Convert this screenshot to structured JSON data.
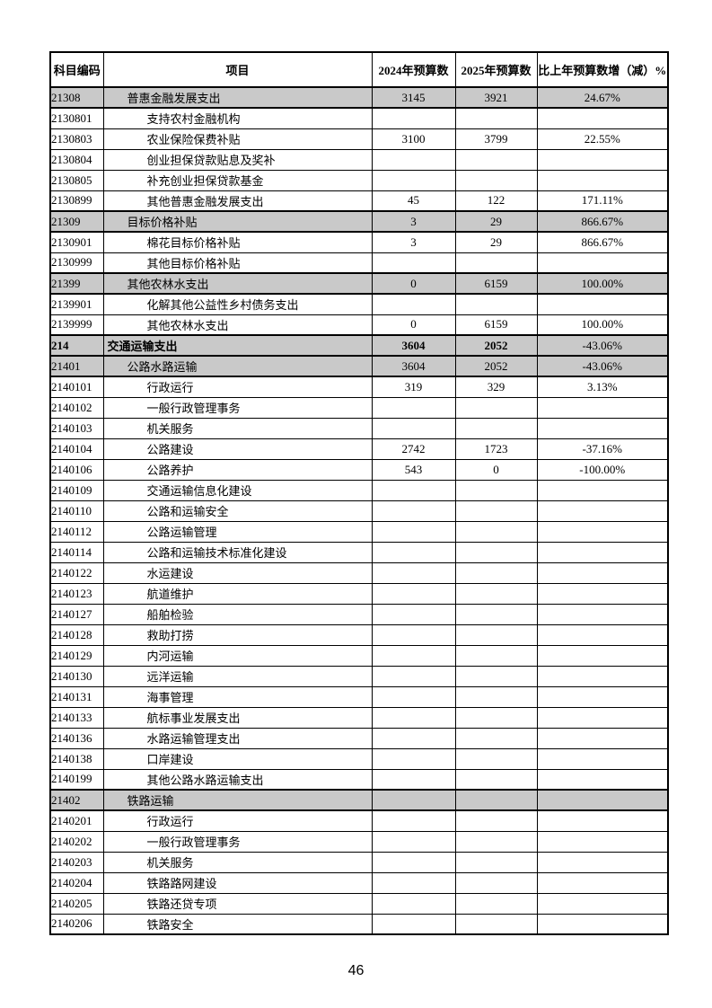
{
  "page": {
    "number": "46"
  },
  "table": {
    "columns": [
      "科目编码",
      "项目",
      "2024年预算数",
      "2025年预算数",
      "比上年预算数增（减）%"
    ],
    "rows": [
      {
        "code": "21308",
        "item": "普惠金融发展支出",
        "level": 2,
        "shaded": true,
        "bold": false,
        "v2024": "3145",
        "v2025": "3921",
        "pct": "24.67%"
      },
      {
        "code": "2130801",
        "item": "支持农村金融机构",
        "level": 3,
        "shaded": false,
        "bold": false,
        "v2024": "",
        "v2025": "",
        "pct": ""
      },
      {
        "code": "2130803",
        "item": "农业保险保费补贴",
        "level": 3,
        "shaded": false,
        "bold": false,
        "v2024": "3100",
        "v2025": "3799",
        "pct": "22.55%"
      },
      {
        "code": "2130804",
        "item": "创业担保贷款贴息及奖补",
        "level": 3,
        "shaded": false,
        "bold": false,
        "v2024": "",
        "v2025": "",
        "pct": ""
      },
      {
        "code": "2130805",
        "item": "补充创业担保贷款基金",
        "level": 3,
        "shaded": false,
        "bold": false,
        "v2024": "",
        "v2025": "",
        "pct": ""
      },
      {
        "code": "2130899",
        "item": "其他普惠金融发展支出",
        "level": 3,
        "shaded": false,
        "bold": false,
        "v2024": "45",
        "v2025": "122",
        "pct": "171.11%"
      },
      {
        "code": "21309",
        "item": "目标价格补贴",
        "level": 2,
        "shaded": true,
        "bold": false,
        "v2024": "3",
        "v2025": "29",
        "pct": "866.67%"
      },
      {
        "code": "2130901",
        "item": "棉花目标价格补贴",
        "level": 3,
        "shaded": false,
        "bold": false,
        "v2024": "3",
        "v2025": "29",
        "pct": "866.67%"
      },
      {
        "code": "2130999",
        "item": "其他目标价格补贴",
        "level": 3,
        "shaded": false,
        "bold": false,
        "v2024": "",
        "v2025": "",
        "pct": ""
      },
      {
        "code": "21399",
        "item": "其他农林水支出",
        "level": 2,
        "shaded": true,
        "bold": false,
        "v2024": "0",
        "v2025": "6159",
        "pct": "100.00%"
      },
      {
        "code": "2139901",
        "item": "化解其他公益性乡村债务支出",
        "level": 3,
        "shaded": false,
        "bold": false,
        "v2024": "",
        "v2025": "",
        "pct": ""
      },
      {
        "code": "2139999",
        "item": "其他农林水支出",
        "level": 3,
        "shaded": false,
        "bold": false,
        "v2024": "0",
        "v2025": "6159",
        "pct": "100.00%"
      },
      {
        "code": "214",
        "item": "交通运输支出",
        "level": 1,
        "shaded": true,
        "bold": true,
        "v2024": "3604",
        "v2025": "2052",
        "pct": "-43.06%"
      },
      {
        "code": "21401",
        "item": "公路水路运输",
        "level": 2,
        "shaded": true,
        "bold": false,
        "v2024": "3604",
        "v2025": "2052",
        "pct": "-43.06%"
      },
      {
        "code": "2140101",
        "item": "行政运行",
        "level": 3,
        "shaded": false,
        "bold": false,
        "v2024": "319",
        "v2025": "329",
        "pct": "3.13%"
      },
      {
        "code": "2140102",
        "item": "一般行政管理事务",
        "level": 3,
        "shaded": false,
        "bold": false,
        "v2024": "",
        "v2025": "",
        "pct": ""
      },
      {
        "code": "2140103",
        "item": "机关服务",
        "level": 3,
        "shaded": false,
        "bold": false,
        "v2024": "",
        "v2025": "",
        "pct": ""
      },
      {
        "code": "2140104",
        "item": "公路建设",
        "level": 3,
        "shaded": false,
        "bold": false,
        "v2024": "2742",
        "v2025": "1723",
        "pct": "-37.16%"
      },
      {
        "code": "2140106",
        "item": "公路养护",
        "level": 3,
        "shaded": false,
        "bold": false,
        "v2024": "543",
        "v2025": "0",
        "pct": "-100.00%"
      },
      {
        "code": "2140109",
        "item": "交通运输信息化建设",
        "level": 3,
        "shaded": false,
        "bold": false,
        "v2024": "",
        "v2025": "",
        "pct": ""
      },
      {
        "code": "2140110",
        "item": "公路和运输安全",
        "level": 3,
        "shaded": false,
        "bold": false,
        "v2024": "",
        "v2025": "",
        "pct": ""
      },
      {
        "code": "2140112",
        "item": "公路运输管理",
        "level": 3,
        "shaded": false,
        "bold": false,
        "v2024": "",
        "v2025": "",
        "pct": ""
      },
      {
        "code": "2140114",
        "item": "公路和运输技术标准化建设",
        "level": 3,
        "shaded": false,
        "bold": false,
        "v2024": "",
        "v2025": "",
        "pct": ""
      },
      {
        "code": "2140122",
        "item": "水运建设",
        "level": 3,
        "shaded": false,
        "bold": false,
        "v2024": "",
        "v2025": "",
        "pct": ""
      },
      {
        "code": "2140123",
        "item": "航道维护",
        "level": 3,
        "shaded": false,
        "bold": false,
        "v2024": "",
        "v2025": "",
        "pct": ""
      },
      {
        "code": "2140127",
        "item": "船舶检验",
        "level": 3,
        "shaded": false,
        "bold": false,
        "v2024": "",
        "v2025": "",
        "pct": ""
      },
      {
        "code": "2140128",
        "item": "救助打捞",
        "level": 3,
        "shaded": false,
        "bold": false,
        "v2024": "",
        "v2025": "",
        "pct": ""
      },
      {
        "code": "2140129",
        "item": "内河运输",
        "level": 3,
        "shaded": false,
        "bold": false,
        "v2024": "",
        "v2025": "",
        "pct": ""
      },
      {
        "code": "2140130",
        "item": "远洋运输",
        "level": 3,
        "shaded": false,
        "bold": false,
        "v2024": "",
        "v2025": "",
        "pct": ""
      },
      {
        "code": "2140131",
        "item": "海事管理",
        "level": 3,
        "shaded": false,
        "bold": false,
        "v2024": "",
        "v2025": "",
        "pct": ""
      },
      {
        "code": "2140133",
        "item": "航标事业发展支出",
        "level": 3,
        "shaded": false,
        "bold": false,
        "v2024": "",
        "v2025": "",
        "pct": ""
      },
      {
        "code": "2140136",
        "item": "水路运输管理支出",
        "level": 3,
        "shaded": false,
        "bold": false,
        "v2024": "",
        "v2025": "",
        "pct": ""
      },
      {
        "code": "2140138",
        "item": "口岸建设",
        "level": 3,
        "shaded": false,
        "bold": false,
        "v2024": "",
        "v2025": "",
        "pct": ""
      },
      {
        "code": "2140199",
        "item": "其他公路水路运输支出",
        "level": 3,
        "shaded": false,
        "bold": false,
        "v2024": "",
        "v2025": "",
        "pct": ""
      },
      {
        "code": "21402",
        "item": "铁路运输",
        "level": 2,
        "shaded": true,
        "bold": false,
        "v2024": "",
        "v2025": "",
        "pct": ""
      },
      {
        "code": "2140201",
        "item": "行政运行",
        "level": 3,
        "shaded": false,
        "bold": false,
        "v2024": "",
        "v2025": "",
        "pct": ""
      },
      {
        "code": "2140202",
        "item": "一般行政管理事务",
        "level": 3,
        "shaded": false,
        "bold": false,
        "v2024": "",
        "v2025": "",
        "pct": ""
      },
      {
        "code": "2140203",
        "item": "机关服务",
        "level": 3,
        "shaded": false,
        "bold": false,
        "v2024": "",
        "v2025": "",
        "pct": ""
      },
      {
        "code": "2140204",
        "item": "铁路路网建设",
        "level": 3,
        "shaded": false,
        "bold": false,
        "v2024": "",
        "v2025": "",
        "pct": ""
      },
      {
        "code": "2140205",
        "item": "铁路还贷专项",
        "level": 3,
        "shaded": false,
        "bold": false,
        "v2024": "",
        "v2025": "",
        "pct": ""
      },
      {
        "code": "2140206",
        "item": "铁路安全",
        "level": 3,
        "shaded": false,
        "bold": false,
        "v2024": "",
        "v2025": "",
        "pct": ""
      }
    ]
  }
}
